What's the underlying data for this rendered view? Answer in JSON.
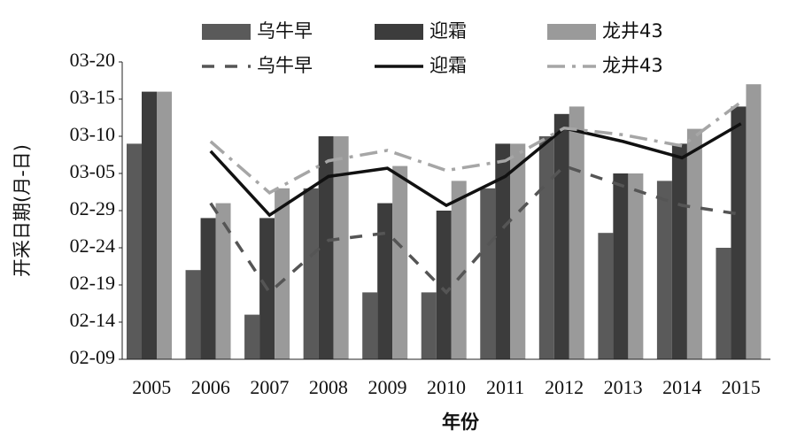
{
  "chart_data": {
    "type": "combo",
    "x_label": "年份",
    "y_label": "开采日期(月-日)",
    "categories": [
      "2005",
      "2006",
      "2007",
      "2008",
      "2009",
      "2010",
      "2011",
      "2012",
      "2013",
      "2014",
      "2015"
    ],
    "ylim": [
      40,
      80
    ],
    "yticks": [
      {
        "value": 40,
        "label": "02-09"
      },
      {
        "value": 45,
        "label": "02-14"
      },
      {
        "value": 50,
        "label": "02-19"
      },
      {
        "value": 55,
        "label": "02-24"
      },
      {
        "value": 60,
        "label": "02-29"
      },
      {
        "value": 65,
        "label": "03-05"
      },
      {
        "value": 70,
        "label": "03-10"
      },
      {
        "value": 75,
        "label": "03-15"
      },
      {
        "value": 80,
        "label": "03-20"
      }
    ],
    "series": [
      {
        "name": "乌牛早",
        "type": "bar",
        "color": "#5a5a5a",
        "values": [
          69,
          52,
          46,
          63,
          49,
          49,
          63,
          70,
          57,
          64,
          55
        ]
      },
      {
        "name": "迎霜",
        "type": "bar",
        "color": "#3c3c3c",
        "values": [
          76,
          59,
          59,
          70,
          61,
          60,
          69,
          73,
          65,
          69,
          74
        ]
      },
      {
        "name": "龙井43",
        "type": "bar",
        "color": "#9a9a9a",
        "values": [
          76,
          61,
          63,
          70,
          66,
          64,
          69,
          74,
          65,
          71,
          77
        ]
      },
      {
        "name": "乌牛早",
        "type": "line",
        "dash": "14 12",
        "color": "#555555",
        "values": [
          null,
          61,
          49,
          56,
          57,
          49,
          58,
          66,
          63.3,
          60.7,
          59.5
        ]
      },
      {
        "name": "迎霜",
        "type": "line",
        "dash": "none",
        "color": "#111111",
        "values": [
          null,
          68,
          59.4,
          64.6,
          65.7,
          60.7,
          64.6,
          71.1,
          69.3,
          67.1,
          71.7
        ]
      },
      {
        "name": "龙井43",
        "type": "line",
        "dash": "20 8 4 8",
        "color": "#a6a6a6",
        "values": [
          null,
          69.3,
          62.4,
          66.7,
          68.1,
          65.4,
          66.7,
          71.1,
          70.2,
          68.7,
          74.6
        ]
      }
    ]
  }
}
